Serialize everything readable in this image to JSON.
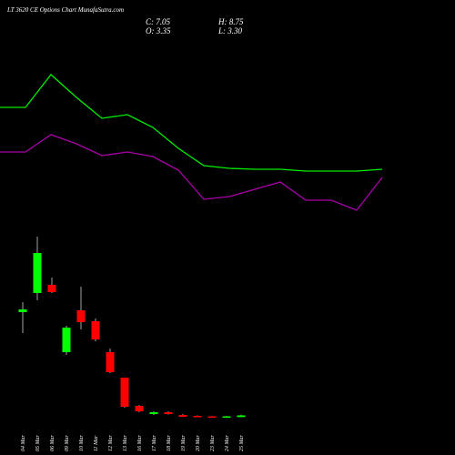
{
  "chart_data": {
    "type": "candlestick",
    "title": "LT 3620 CE Options  Chart MunafaSutra.com",
    "ohlc_labels": {
      "close": "C: 7.05",
      "high": "H: 8.75",
      "open": "O: 3.35",
      "low": "L: 3.30"
    },
    "categories": [
      "04 Mar",
      "05 Mar",
      "06 Mar",
      "09 Mar",
      "10 Mar",
      "11 Mar",
      "12 Mar",
      "13 Mar",
      "16 Mar",
      "17 Mar",
      "18 Mar",
      "19 Mar",
      "20 Mar",
      "23 Mar",
      "24 Mar",
      "25 Mar"
    ],
    "open": [
      234,
      276,
      294,
      146,
      238,
      214,
      146,
      90,
      28,
      10,
      14,
      8,
      6,
      5,
      3.5,
      3.35
    ],
    "high": [
      256,
      400,
      310,
      204,
      290,
      220,
      154,
      90,
      30,
      16,
      16,
      10,
      7,
      5.5,
      6,
      8.75
    ],
    "low": [
      188,
      260,
      276,
      140,
      196,
      170,
      100,
      24,
      14,
      8,
      9,
      4,
      4,
      3,
      3,
      3.3
    ],
    "close": [
      240,
      364,
      278,
      200,
      212,
      174,
      102,
      26,
      16,
      14,
      10,
      4,
      4.5,
      3.5,
      5,
      7.05
    ],
    "up_color": "#00ff00",
    "down_color": "#ff0000",
    "series": [
      {
        "color": "#00ee00",
        "values": [
          684,
          684,
          756,
          706,
          660,
          668,
          640,
          594,
          556,
          550,
          548,
          548,
          544,
          544,
          544,
          548
        ]
      },
      {
        "color": "#aa00aa",
        "values": [
          586,
          586,
          624,
          604,
          578,
          586,
          576,
          546,
          482,
          488,
          504,
          520,
          480,
          480,
          458,
          530
        ]
      }
    ],
    "ylim": [
      0,
      920
    ]
  }
}
